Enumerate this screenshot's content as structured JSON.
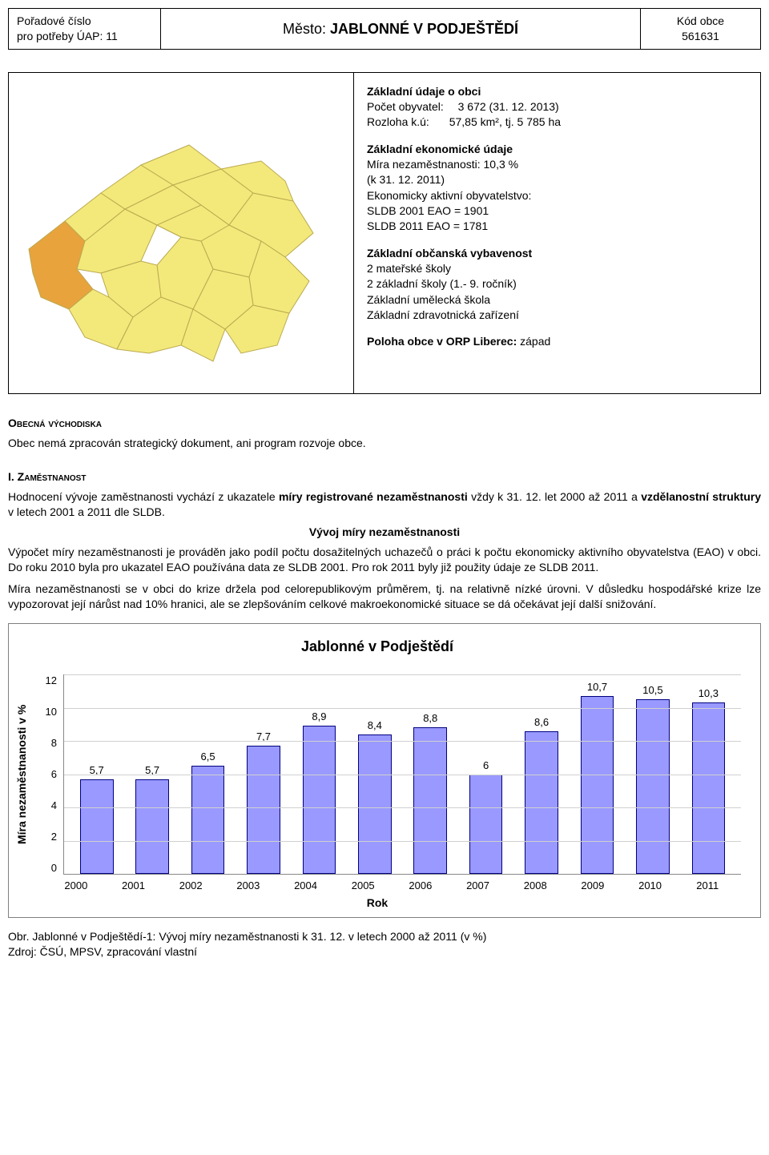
{
  "header": {
    "left_line1": "Pořadové číslo",
    "left_line2": "pro potřeby ÚAP: 11",
    "mid_prefix": "Město: ",
    "mid_name": "JABLONNÉ V PODJEŠTĚDÍ",
    "right_line1": "Kód obce",
    "right_line2": "561631"
  },
  "info": {
    "b1_title": "Základní údaje o obci",
    "b1_l1": "Počet obyvatel:  3 672 (31. 12. 2013)",
    "b1_l2": "Rozloha k.ú:   57,85 km², tj. 5 785 ha",
    "b2_title": "Základní ekonomické údaje",
    "b2_l1": "Míra nezaměstnanosti: 10,3 %",
    "b2_l2": "(k 31. 12. 2011)",
    "b2_l3": "Ekonomicky aktivní obyvatelstvo:",
    "b2_l4": "SLDB 2001 EAO = 1901",
    "b2_l5": "SLDB 2011 EAO = 1781",
    "b3_title": "Základní občanská vybavenost",
    "b3_l1": "2 mateřské školy",
    "b3_l2": "2 základní školy (1.- 9. ročník)",
    "b3_l3": "Základní umělecká škola",
    "b3_l4": "Základní zdravotnická zařízení",
    "b4_lead": "Poloha obce v ORP Liberec: ",
    "b4_val": "západ"
  },
  "map": {
    "fill_main": "#f2e97a",
    "fill_highlight": "#e8a33d",
    "stroke": "#bba94f"
  },
  "sections": {
    "s1_title": "Obecná východiska",
    "s1_body": "Obec nemá zpracován strategický dokument, ani program rozvoje obce.",
    "s2_title": "I. Zaměstnanost",
    "s2_p1_a": "Hodnocení vývoje zaměstnanosti vychází z ukazatele ",
    "s2_p1_b": "míry registrované nezaměstnanosti",
    "s2_p1_c": " vždy k 31. 12. let 2000 až 2011 a ",
    "s2_p1_d": "vzdělanostní struktury",
    "s2_p1_e": " v letech 2001 a 2011 dle SLDB.",
    "s2_sub": "Vývoj míry nezaměstnanosti",
    "s2_p2": "Výpočet míry nezaměstnanosti je prováděn jako podíl počtu dosažitelných uchazečů o práci k počtu ekonomicky aktivního obyvatelstva (EAO) v obci. Do roku 2010 byla pro ukazatel EAO používána data ze SLDB 2001. Pro rok 2011 byly již použity údaje ze SLDB 2011.",
    "s2_p3": "Míra nezaměstnanosti se v obci do krize držela pod celorepublikovým průměrem, tj. na relativně nízké úrovni. V důsledku hospodářské krize lze vypozorovat její nárůst nad 10% hranici, ale se zlepšováním celkové makroekonomické situace se dá očekávat její další snižování."
  },
  "chart": {
    "type": "bar",
    "title": "Jablonné v Podještědí",
    "categories": [
      "2000",
      "2001",
      "2002",
      "2003",
      "2004",
      "2005",
      "2006",
      "2007",
      "2008",
      "2009",
      "2010",
      "2011"
    ],
    "values": [
      5.7,
      5.7,
      6.5,
      7.7,
      8.9,
      8.4,
      8.8,
      6,
      8.6,
      10.7,
      10.5,
      10.3
    ],
    "value_labels": [
      "5,7",
      "5,7",
      "6,5",
      "7,7",
      "8,9",
      "8,4",
      "8,8",
      "6",
      "8,6",
      "10,7",
      "10,5",
      "10,3"
    ],
    "bar_fill": "#9999ff",
    "bar_stroke": "#000080",
    "ylabel": "Míra nezaměstnanosti v %",
    "xlabel": "Rok",
    "ylim_max": 12,
    "ytick_step": 2,
    "yticks": [
      "12",
      "10",
      "8",
      "6",
      "4",
      "2",
      "0"
    ],
    "grid_color": "#d0d0d0",
    "background_color": "#ffffff",
    "title_fontsize": 18,
    "font_family": "Arial"
  },
  "footer": {
    "l1": "Obr. Jablonné v Podještědí-1: Vývoj míry nezaměstnanosti k 31. 12. v letech 2000 až 2011 (v %)",
    "l2": "Zdroj: ČSÚ, MPSV, zpracování vlastní"
  }
}
